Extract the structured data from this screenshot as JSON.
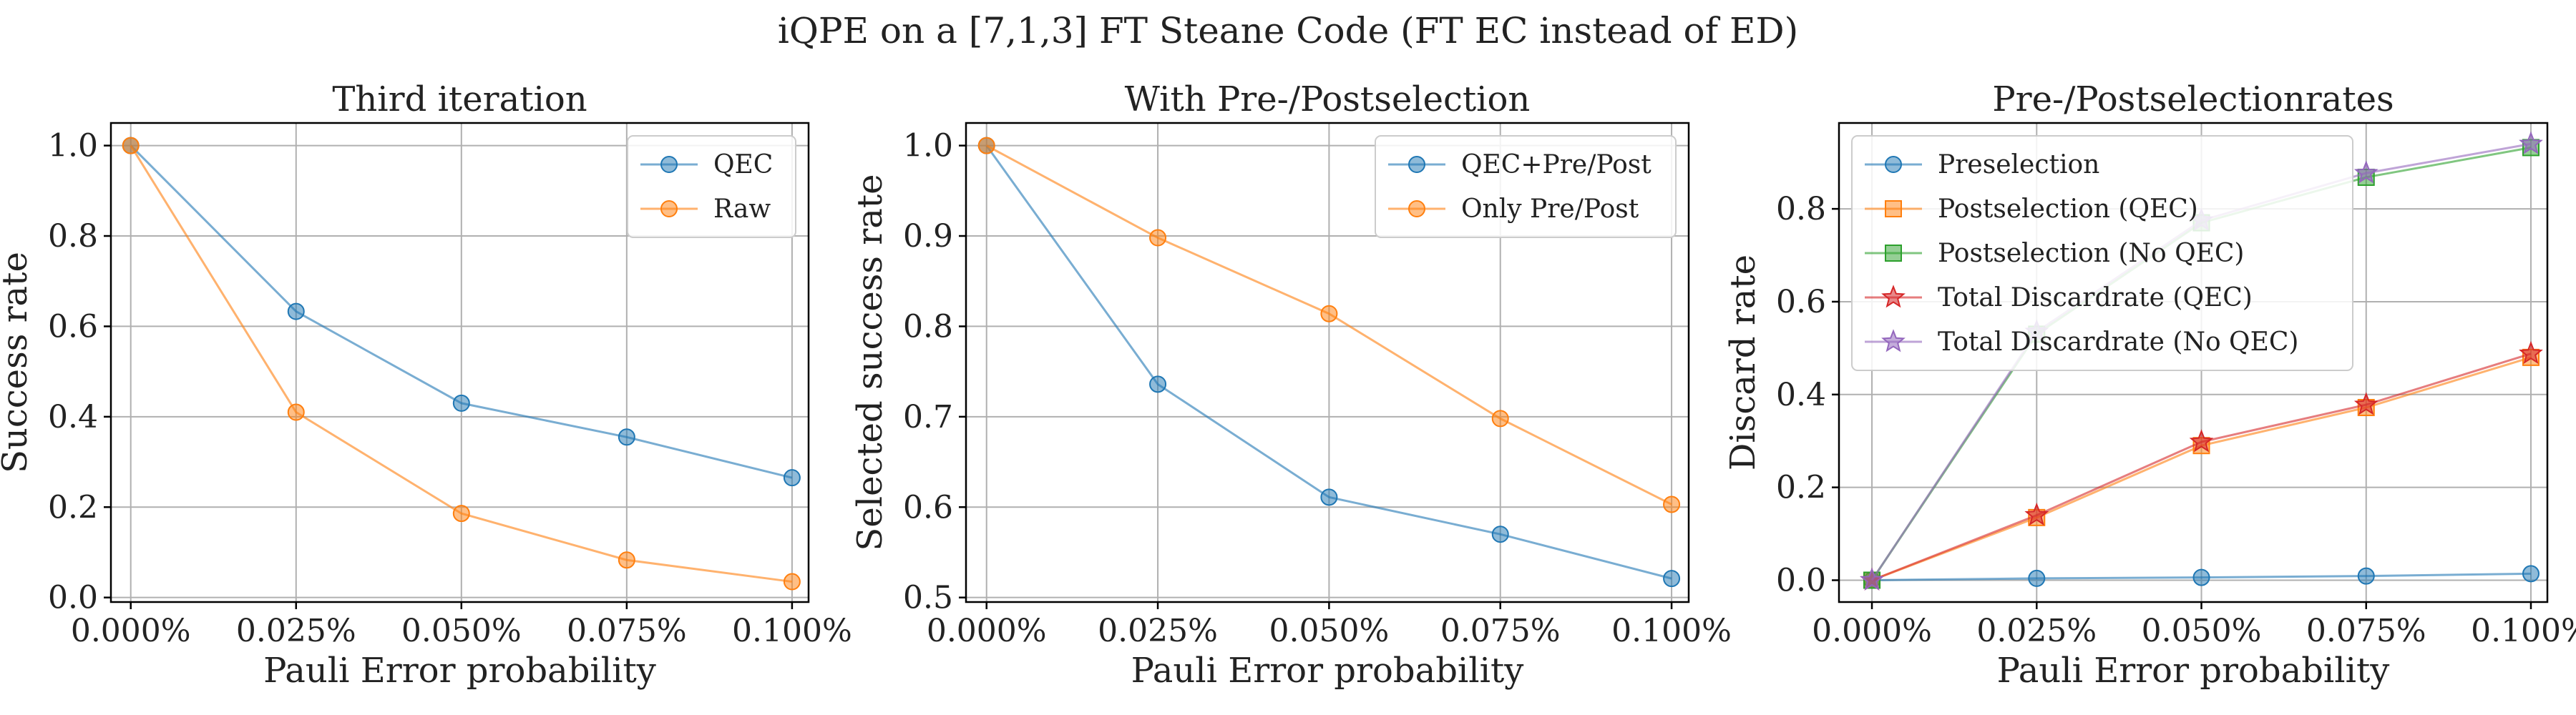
{
  "figure": {
    "title": "iQPE on a [7,1,3] FT Steane Code (FT EC instead of ED)"
  },
  "colors": {
    "blue": "#1f77b4",
    "orange": "#ff7f0e",
    "green": "#2ca02c",
    "red": "#d62728",
    "purple": "#9467bd"
  },
  "chart_data": [
    {
      "type": "line",
      "title": "Third iteration",
      "xlabel": "Pauli Error probability",
      "ylabel": "Success rate",
      "x": [
        0.0,
        0.025,
        0.05,
        0.075,
        0.1
      ],
      "xtick_labels": [
        "0.000%",
        "0.025%",
        "0.050%",
        "0.075%",
        "0.100%"
      ],
      "xlim": [
        -0.003,
        0.1025
      ],
      "ylim": [
        -0.01,
        1.05
      ],
      "yticks": [
        0.0,
        0.2,
        0.4,
        0.6,
        0.8,
        1.0
      ],
      "ytick_labels": [
        "0.0",
        "0.2",
        "0.4",
        "0.6",
        "0.8",
        "1.0"
      ],
      "grid": true,
      "legend": "top-right",
      "series": [
        {
          "name": "QEC",
          "color": "blue",
          "marker": "circle",
          "values": [
            1.0,
            0.633,
            0.43,
            0.355,
            0.265
          ]
        },
        {
          "name": "Raw",
          "color": "orange",
          "marker": "circle",
          "values": [
            1.0,
            0.41,
            0.186,
            0.083,
            0.035
          ]
        }
      ]
    },
    {
      "type": "line",
      "title": "With Pre-/Postselection",
      "xlabel": "Pauli Error probability",
      "ylabel": "Selected success rate",
      "x": [
        0.0,
        0.025,
        0.05,
        0.075,
        0.1
      ],
      "xtick_labels": [
        "0.000%",
        "0.025%",
        "0.050%",
        "0.075%",
        "0.100%"
      ],
      "xlim": [
        -0.003,
        0.1025
      ],
      "ylim": [
        0.495,
        1.025
      ],
      "yticks": [
        0.5,
        0.6,
        0.7,
        0.8,
        0.9,
        1.0
      ],
      "ytick_labels": [
        "0.5",
        "0.6",
        "0.7",
        "0.8",
        "0.9",
        "1.0"
      ],
      "grid": true,
      "legend": "top-right",
      "series": [
        {
          "name": "QEC+Pre/Post",
          "color": "blue",
          "marker": "circle",
          "values": [
            1.0,
            0.736,
            0.611,
            0.57,
            0.521
          ]
        },
        {
          "name": "Only Pre/Post",
          "color": "orange",
          "marker": "circle",
          "values": [
            1.0,
            0.898,
            0.814,
            0.698,
            0.603
          ]
        }
      ]
    },
    {
      "type": "line",
      "title": "Pre-/Postselectionrates",
      "xlabel": "Pauli Error probability",
      "ylabel": "Discard rate",
      "x": [
        0.0,
        0.025,
        0.05,
        0.075,
        0.1
      ],
      "xtick_labels": [
        "0.000%",
        "0.025%",
        "0.050%",
        "0.075%",
        "0.100%"
      ],
      "xlim": [
        -0.005,
        0.1025
      ],
      "ylim": [
        -0.047,
        0.985
      ],
      "yticks": [
        0.0,
        0.2,
        0.4,
        0.6,
        0.8
      ],
      "ytick_labels": [
        "0.0",
        "0.2",
        "0.4",
        "0.6",
        "0.8"
      ],
      "grid": true,
      "legend": "top-left",
      "series": [
        {
          "name": "Preselection",
          "color": "blue",
          "marker": "circle",
          "values": [
            0.0,
            0.004,
            0.006,
            0.009,
            0.014
          ]
        },
        {
          "name": "Postselection (QEC)",
          "color": "orange",
          "marker": "square",
          "values": [
            0.0,
            0.135,
            0.29,
            0.372,
            0.48
          ]
        },
        {
          "name": "Postselection (No QEC)",
          "color": "green",
          "marker": "square",
          "values": [
            0.0,
            0.53,
            0.77,
            0.868,
            0.932
          ]
        },
        {
          "name": "Total Discardrate (QEC)",
          "color": "red",
          "marker": "star",
          "values": [
            0.0,
            0.14,
            0.298,
            0.378,
            0.488
          ]
        },
        {
          "name": "Total Discardrate (No QEC)",
          "color": "purple",
          "marker": "star",
          "values": [
            0.0,
            0.535,
            0.775,
            0.877,
            0.94
          ]
        }
      ]
    }
  ]
}
